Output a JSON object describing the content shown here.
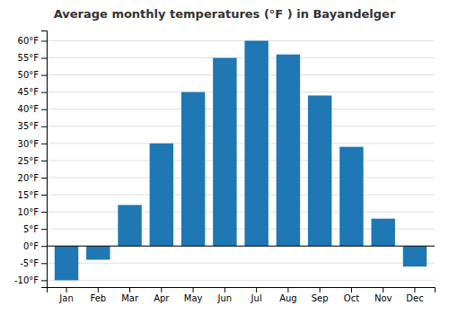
{
  "chart_data": {
    "type": "bar",
    "title": "Average monthly temperatures (°F ) in Bayandelger",
    "categories": [
      "Jan",
      "Feb",
      "Mar",
      "Apr",
      "May",
      "Jun",
      "Jul",
      "Aug",
      "Sep",
      "Oct",
      "Nov",
      "Dec"
    ],
    "values": [
      -10,
      -4,
      12,
      30,
      45,
      55,
      60,
      56,
      44,
      29,
      8,
      -6
    ],
    "ylim": [
      -12,
      63
    ],
    "yticks": [
      {
        "value": -10,
        "label": "-10°F"
      },
      {
        "value": -5,
        "label": "-5°F"
      },
      {
        "value": 0,
        "label": "0°F"
      },
      {
        "value": 5,
        "label": "5°F"
      },
      {
        "value": 10,
        "label": "10°F"
      },
      {
        "value": 15,
        "label": "15°F"
      },
      {
        "value": 20,
        "label": "20°F"
      },
      {
        "value": 25,
        "label": "25°F"
      },
      {
        "value": 30,
        "label": "30°F"
      },
      {
        "value": 35,
        "label": "35°F"
      },
      {
        "value": 40,
        "label": "40°F"
      },
      {
        "value": 45,
        "label": "45°F"
      },
      {
        "value": 50,
        "label": "50°F"
      },
      {
        "value": 55,
        "label": "55°F"
      },
      {
        "value": 60,
        "label": "60°F"
      }
    ],
    "grid": true
  }
}
